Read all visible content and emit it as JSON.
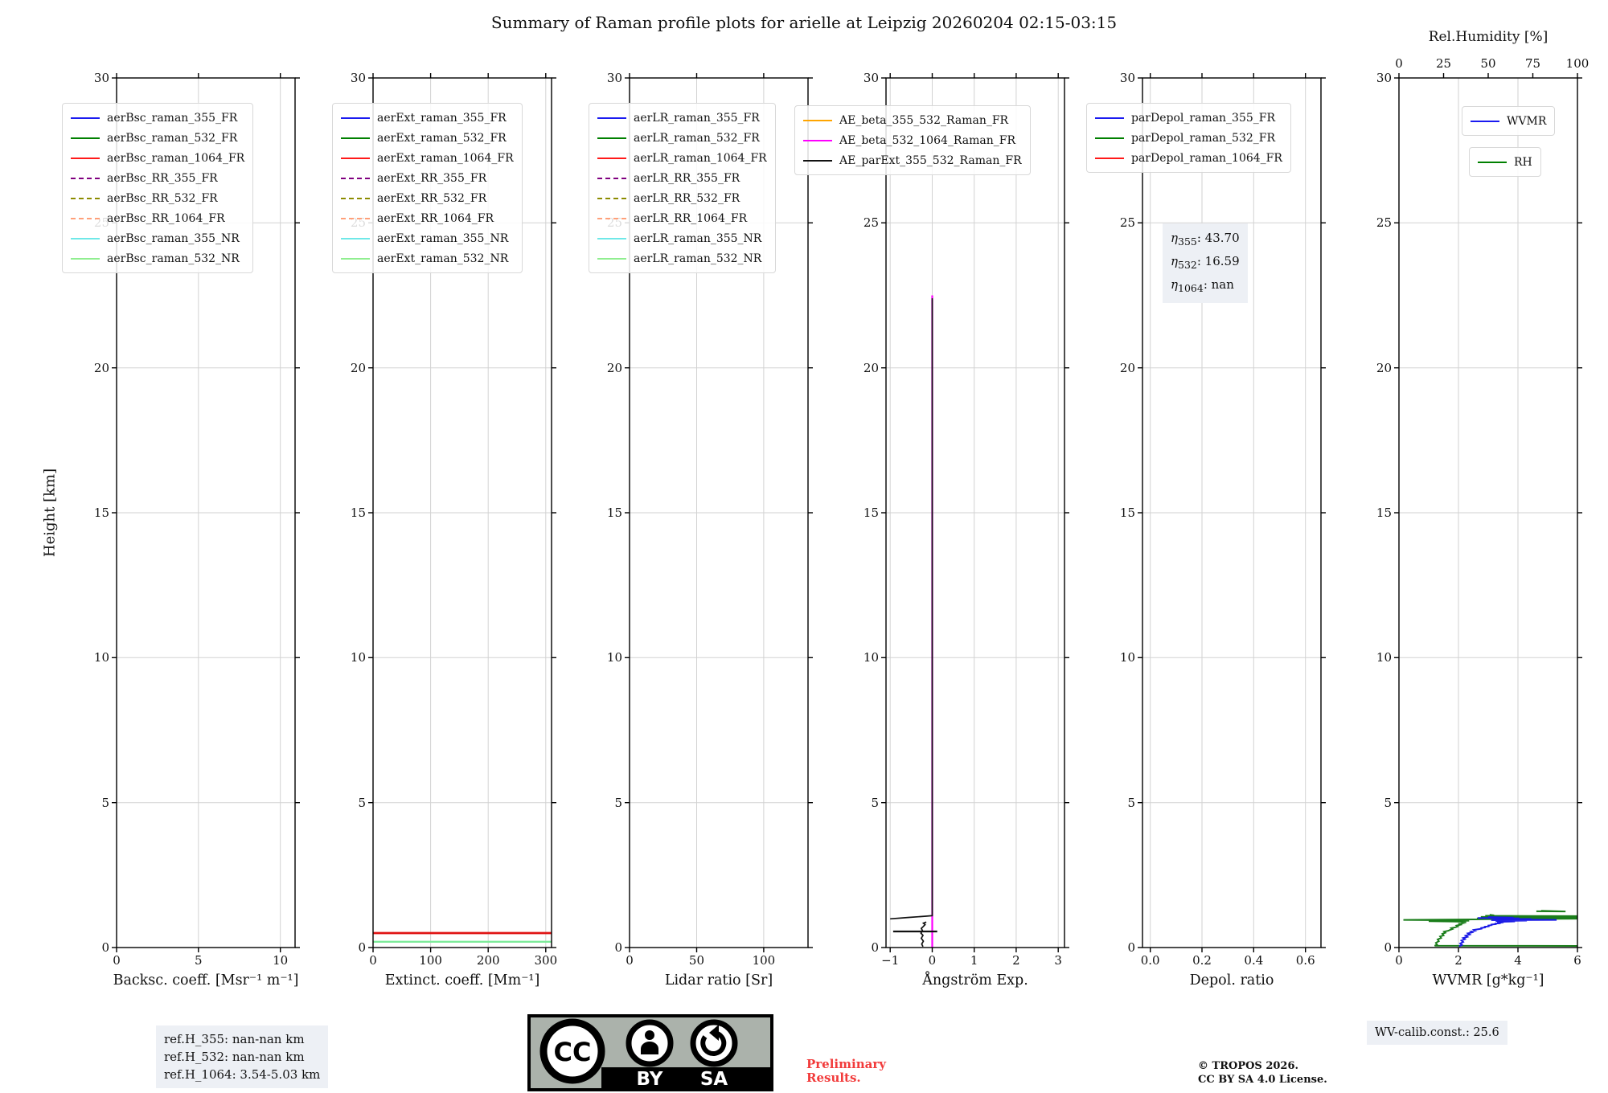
{
  "title": "Summary of Raman profile plots for arielle at Leipzig 20260204 02:15-03:15",
  "chart_data": {
    "type": "line",
    "ylabel": "Height [km]",
    "ylim": [
      0,
      30
    ],
    "yticks": [
      0,
      5,
      10,
      15,
      20,
      25,
      30
    ],
    "grid": true,
    "panels": [
      {
        "name": "backscatter",
        "xlabel": "Backsc. coeff. [Msr⁻¹ m⁻¹]",
        "xlim": [
          0,
          10.9
        ],
        "xticks": [
          {
            "v": 0,
            "l": "0"
          },
          {
            "v": 5,
            "l": "5"
          },
          {
            "v": 10,
            "l": "10"
          }
        ],
        "legend": [
          [
            {
              "label": "aerBsc_raman_355_FR",
              "color": "#1a1af0",
              "dash": false
            },
            {
              "label": "aerBsc_raman_532_FR",
              "color": "#008000",
              "dash": false
            },
            {
              "label": "aerBsc_raman_1064_FR",
              "color": "#ff1a1a",
              "dash": false
            },
            {
              "label": "aerBsc_RR_355_FR",
              "color": "#800080",
              "dash": true
            },
            {
              "label": "aerBsc_RR_532_FR",
              "color": "#8c8c00",
              "dash": true
            },
            {
              "label": "aerBsc_RR_1064_FR",
              "color": "#ffa07a",
              "dash": true
            },
            {
              "label": "aerBsc_raman_355_NR",
              "color": "#6fe8e8",
              "dash": false
            },
            {
              "label": "aerBsc_raman_532_NR",
              "color": "#90ee90",
              "dash": false
            }
          ]
        ],
        "series": []
      },
      {
        "name": "extinction",
        "xlabel": "Extinct. coeff. [Mm⁻¹]",
        "xlim": [
          0,
          310
        ],
        "xticks": [
          {
            "v": 0,
            "l": "0"
          },
          {
            "v": 100,
            "l": "100"
          },
          {
            "v": 200,
            "l": "200"
          },
          {
            "v": 300,
            "l": "300"
          }
        ],
        "legend": [
          [
            {
              "label": "aerExt_raman_355_FR",
              "color": "#1a1af0",
              "dash": false
            },
            {
              "label": "aerExt_raman_532_FR",
              "color": "#008000",
              "dash": false
            },
            {
              "label": "aerExt_raman_1064_FR",
              "color": "#ff1a1a",
              "dash": false
            },
            {
              "label": "aerExt_RR_355_FR",
              "color": "#800080",
              "dash": true
            },
            {
              "label": "aerExt_RR_532_FR",
              "color": "#8c8c00",
              "dash": true
            },
            {
              "label": "aerExt_RR_1064_FR",
              "color": "#ffa07a",
              "dash": true
            },
            {
              "label": "aerExt_raman_355_NR",
              "color": "#6fe8e8",
              "dash": false
            },
            {
              "label": "aerExt_raman_532_NR",
              "color": "#90ee90",
              "dash": false
            }
          ]
        ],
        "series": [
          {
            "name": "aerExt_raman_1064_FR",
            "color": "#e01414",
            "width": 2.8,
            "points": [
              [
                -5,
                0.5
              ],
              [
                315,
                0.5
              ]
            ]
          },
          {
            "name": "aerExt_raman_532_NR",
            "color": "#7deb9a",
            "width": 2.4,
            "points": [
              [
                -5,
                0.2
              ],
              [
                315,
                0.2
              ]
            ]
          }
        ]
      },
      {
        "name": "lidar-ratio",
        "xlabel": "Lidar ratio [Sr]",
        "xlim": [
          0,
          133
        ],
        "xticks": [
          {
            "v": 0,
            "l": "0"
          },
          {
            "v": 50,
            "l": "50"
          },
          {
            "v": 100,
            "l": "100"
          }
        ],
        "legend": [
          [
            {
              "label": "aerLR_raman_355_FR",
              "color": "#1a1af0",
              "dash": false
            },
            {
              "label": "aerLR_raman_532_FR",
              "color": "#008000",
              "dash": false
            },
            {
              "label": "aerLR_raman_1064_FR",
              "color": "#ff1a1a",
              "dash": false
            },
            {
              "label": "aerLR_RR_355_FR",
              "color": "#800080",
              "dash": true
            },
            {
              "label": "aerLR_RR_532_FR",
              "color": "#8c8c00",
              "dash": true
            },
            {
              "label": "aerLR_RR_1064_FR",
              "color": "#ffa07a",
              "dash": true
            },
            {
              "label": "aerLR_raman_355_NR",
              "color": "#6fe8e8",
              "dash": false
            },
            {
              "label": "aerLR_raman_532_NR",
              "color": "#90ee90",
              "dash": false
            }
          ]
        ],
        "series": []
      },
      {
        "name": "angstroem",
        "xlabel": "Ångström Exp.",
        "xlim": [
          -1.1,
          3.15
        ],
        "xticks": [
          {
            "v": -1,
            "l": "−1"
          },
          {
            "v": 0,
            "l": "0"
          },
          {
            "v": 1,
            "l": "1"
          },
          {
            "v": 2,
            "l": "2"
          },
          {
            "v": 3,
            "l": "3"
          }
        ],
        "legend": [
          [
            {
              "label": "AE_beta_355_532_Raman_FR",
              "color": "#ffa500",
              "dash": false
            },
            {
              "label": "AE_beta_532_1064_Raman_FR",
              "color": "#ff00ff",
              "dash": false
            },
            {
              "label": "AE_parExt_355_532_Raman_FR",
              "color": "#111111",
              "dash": false
            }
          ]
        ],
        "series": [
          {
            "name": "AE_beta_532_1064_Raman_FR",
            "color": "#ff00ff",
            "width": 2.2,
            "points": [
              [
                0,
                0
              ],
              [
                0,
                22.5
              ]
            ]
          },
          {
            "name": "AE_parExt_355_532_Raman_FR",
            "color": "#111111",
            "width": 1.7,
            "points": [
              [
                -1.0,
                0.99
              ],
              [
                -0.55,
                1.04
              ],
              [
                -0.15,
                1.08
              ],
              [
                0,
                1.1
              ],
              [
                0,
                22.4
              ]
            ]
          },
          {
            "name": "AE_parExt_355_532_Raman_FR_low",
            "color": "#111111",
            "width": 2.2,
            "points": [
              [
                -0.93,
                0.555
              ],
              [
                0.12,
                0.555
              ]
            ]
          },
          {
            "name": "AE_parExt_355_532_Raman_FR_noise",
            "color": "#111111",
            "width": 1.7,
            "points": [
              [
                -0.22,
                0.03
              ],
              [
                -0.25,
                0.12
              ],
              [
                -0.21,
                0.22
              ],
              [
                -0.26,
                0.32
              ],
              [
                -0.22,
                0.42
              ],
              [
                -0.27,
                0.5
              ],
              [
                -0.23,
                0.58
              ],
              [
                -0.26,
                0.66
              ],
              [
                -0.21,
                0.73
              ],
              [
                -0.17,
                0.79
              ],
              [
                -0.21,
                0.84
              ],
              [
                -0.14,
                0.88
              ]
            ]
          }
        ]
      },
      {
        "name": "depol-ratio",
        "xlabel": "Depol. ratio",
        "xlim": [
          -0.03,
          0.66
        ],
        "xticks": [
          {
            "v": 0.0,
            "l": "0.0"
          },
          {
            "v": 0.2,
            "l": "0.2"
          },
          {
            "v": 0.4,
            "l": "0.4"
          },
          {
            "v": 0.6,
            "l": "0.6"
          }
        ],
        "legend": [
          [
            {
              "label": "parDepol_raman_355_FR",
              "color": "#1a1af0",
              "dash": false
            },
            {
              "label": "parDepol_raman_532_FR",
              "color": "#008000",
              "dash": false
            },
            {
              "label": "parDepol_raman_1064_FR",
              "color": "#ff1a1a",
              "dash": false
            }
          ]
        ],
        "series": []
      },
      {
        "name": "wvmr",
        "xlabel": "WVMR [g*kg⁻¹]",
        "xlim": [
          0,
          6
        ],
        "xticks": [
          {
            "v": 0,
            "l": "0"
          },
          {
            "v": 2,
            "l": "2"
          },
          {
            "v": 4,
            "l": "4"
          },
          {
            "v": 6,
            "l": "6"
          }
        ],
        "top_axis": {
          "label": "Rel.Humidity [%]",
          "lim": [
            0,
            100
          ],
          "ticks": [
            {
              "v": 0,
              "l": "0"
            },
            {
              "v": 25,
              "l": "25"
            },
            {
              "v": 50,
              "l": "50"
            },
            {
              "v": 75,
              "l": "75"
            },
            {
              "v": 100,
              "l": "100"
            }
          ]
        },
        "legend": [
          [
            {
              "label": "WVMR",
              "color": "#1a1af0",
              "dash": false
            }
          ],
          [
            {
              "label": "RH",
              "color": "#008000",
              "dash": false
            }
          ]
        ],
        "series": [
          {
            "name": "RH",
            "color": "#1a7d1a",
            "width": 2.0,
            "points": [
              [
                6,
                0.055
              ],
              [
                1.2,
                0.06
              ],
              [
                1.28,
                0.1
              ],
              [
                1.24,
                0.16
              ],
              [
                1.34,
                0.22
              ],
              [
                1.3,
                0.28
              ],
              [
                1.42,
                0.33
              ],
              [
                1.38,
                0.38
              ],
              [
                1.5,
                0.42
              ],
              [
                1.46,
                0.47
              ],
              [
                1.56,
                0.51
              ],
              [
                1.52,
                0.55
              ],
              [
                1.66,
                0.58
              ],
              [
                1.72,
                0.61
              ],
              [
                1.8,
                0.64
              ],
              [
                1.76,
                0.67
              ],
              [
                1.9,
                0.7
              ],
              [
                1.98,
                0.73
              ],
              [
                1.94,
                0.76
              ],
              [
                2.08,
                0.79
              ],
              [
                2.04,
                0.82
              ],
              [
                2.18,
                0.845
              ],
              [
                2.12,
                0.87
              ],
              [
                2.26,
                0.89
              ],
              [
                1.0,
                0.91
              ],
              [
                2.36,
                0.925
              ],
              [
                2.2,
                0.94
              ],
              [
                0.15,
                0.955
              ],
              [
                2.5,
                0.97
              ],
              [
                3.4,
                0.985
              ],
              [
                6,
                0.995
              ],
              [
                2.62,
                1.005
              ],
              [
                6,
                1.015
              ],
              [
                4.5,
                1.03
              ],
              [
                6,
                1.045
              ],
              [
                2.75,
                1.055
              ],
              [
                6,
                1.065
              ],
              [
                5.1,
                1.075
              ],
              [
                6,
                1.085
              ],
              [
                2.9,
                1.095
              ],
              [
                3.2,
                1.11
              ],
              [
                3.05,
                1.13
              ]
            ]
          },
          {
            "name": "RH_upper",
            "color": "#1a7d1a",
            "width": 2.0,
            "points": [
              [
                4.62,
                1.25
              ],
              [
                5.6,
                1.245
              ],
              [
                4.78,
                1.27
              ]
            ]
          },
          {
            "name": "WVMR",
            "color": "#1a1ae6",
            "width": 2.0,
            "points": [
              [
                2.02,
                0.04
              ],
              [
                2.12,
                0.09
              ],
              [
                2.06,
                0.14
              ],
              [
                2.16,
                0.19
              ],
              [
                2.1,
                0.24
              ],
              [
                2.22,
                0.29
              ],
              [
                2.16,
                0.33
              ],
              [
                2.3,
                0.37
              ],
              [
                2.24,
                0.41
              ],
              [
                2.38,
                0.45
              ],
              [
                2.32,
                0.49
              ],
              [
                2.46,
                0.52
              ],
              [
                2.42,
                0.55
              ],
              [
                2.56,
                0.58
              ],
              [
                2.52,
                0.61
              ],
              [
                2.68,
                0.635
              ],
              [
                2.8,
                0.655
              ],
              [
                2.74,
                0.675
              ],
              [
                2.92,
                0.695
              ],
              [
                2.86,
                0.715
              ],
              [
                3.04,
                0.735
              ],
              [
                2.98,
                0.755
              ],
              [
                3.14,
                0.775
              ],
              [
                3.08,
                0.79
              ],
              [
                3.28,
                0.81
              ],
              [
                3.22,
                0.825
              ],
              [
                3.42,
                0.84
              ],
              [
                3.36,
                0.855
              ],
              [
                3.52,
                0.87
              ],
              [
                3.3,
                0.885
              ],
              [
                3.9,
                0.9
              ],
              [
                3.25,
                0.915
              ],
              [
                4.3,
                0.93
              ],
              [
                3.1,
                0.945
              ],
              [
                5.3,
                0.955
              ],
              [
                3.55,
                0.97
              ],
              [
                4.45,
                0.985
              ],
              [
                3.2,
                1.0
              ],
              [
                4.05,
                1.01
              ],
              [
                2.65,
                1.02
              ],
              [
                3.85,
                1.035
              ],
              [
                3.0,
                1.05
              ]
            ]
          }
        ]
      }
    ]
  },
  "annotations": {
    "eta": {
      "lines": [
        {
          "sym": "η",
          "sub": "355",
          "val": ": 43.70"
        },
        {
          "sym": "η",
          "sub": "532",
          "val": ": 16.59"
        },
        {
          "sym": "η",
          "sub": "1064",
          "val": ": nan"
        }
      ]
    },
    "refH": {
      "lines": [
        "ref.H_355: nan-nan km",
        "ref.H_532: nan-nan km",
        "ref.H_1064: 3.54-5.03 km"
      ]
    },
    "wv_calib": "WV-calib.const.: 25.6",
    "preliminary": {
      "line1": "Preliminary",
      "line2": "Results."
    },
    "copyright": {
      "line1": "© TROPOS 2026.",
      "line2": "CC BY SA 4.0 License."
    },
    "cc_badge": {
      "cc": "CC",
      "by": "BY",
      "sa": "SA"
    }
  }
}
